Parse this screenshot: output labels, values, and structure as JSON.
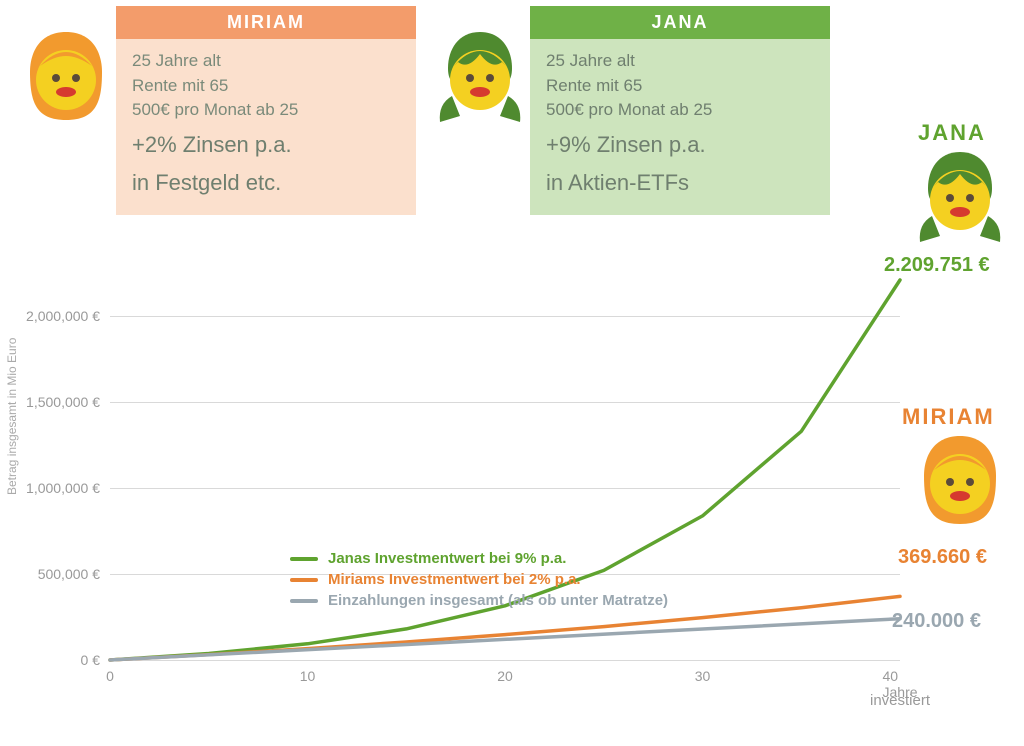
{
  "colors": {
    "miriam_accent": "#e88333",
    "miriam_header": "#f39c6b",
    "miriam_body_bg": "#fbe0cd",
    "jana_accent": "#5fa32f",
    "jana_header": "#6fb147",
    "jana_body_bg": "#cde4bd",
    "grey": "#9aa7b0",
    "text_muted": "#8f9a8f",
    "grid": "#d9d9d9"
  },
  "typography": {
    "base_font": "Segoe UI, Arial, sans-serif",
    "card_header_size_pt": 14,
    "card_body_size_pt": 13,
    "card_rate_size_pt": 17,
    "legend_size_pt": 11,
    "callout_name_size_pt": 17,
    "callout_value_size_pt": 15,
    "axis_label_size_pt": 10
  },
  "miriam": {
    "name": "MIRIAM",
    "age_line": "25 Jahre alt",
    "retire_line": "Rente mit 65",
    "contrib_line": "500€  pro Monat ab 25",
    "rate_line": "+2% Zinsen p.a.",
    "vehicle_line": "in Festgeld etc.",
    "final_value_label": "369.660 €"
  },
  "jana": {
    "name": "JANA",
    "age_line": "25 Jahre alt",
    "retire_line": "Rente mit 65",
    "contrib_line": "500€  pro Monat ab 25",
    "rate_line": "+9% Zinsen p.a.",
    "vehicle_line": "in Aktien-ETFs",
    "final_value_label": "2.209.751 €"
  },
  "deposits": {
    "final_value_label": "240.000 €"
  },
  "chart": {
    "type": "line",
    "x_axis": {
      "min": 0,
      "max": 40,
      "ticks": [
        0,
        10,
        20,
        30,
        40
      ],
      "tick_labels": [
        "0",
        "10",
        "20",
        "30",
        "40 Jahre"
      ],
      "title": "investiert"
    },
    "y_axis": {
      "min": 0,
      "max": 2209751,
      "plot_max": 2209751,
      "ticks": [
        0,
        500000,
        1000000,
        1500000,
        2000000
      ],
      "tick_labels": [
        "0 €",
        "500,000 €",
        "1,000,000 €",
        "1,500,000 €",
        "2,000,000 €"
      ],
      "title": "Betrag insgesamt in Mio Euro"
    },
    "grid": true,
    "line_width": 3.5,
    "series": [
      {
        "id": "jana",
        "legend": "Janas Investmentwert bei 9% p.a.",
        "color": "#5fa32f",
        "x": [
          0,
          5,
          10,
          15,
          20,
          25,
          30,
          35,
          40
        ],
        "y": [
          0,
          37800,
          94100,
          181000,
          315000,
          521000,
          838000,
          1330000,
          2209751
        ]
      },
      {
        "id": "miriam",
        "legend": "Miriams Investmentwert bei 2% p.a.",
        "color": "#e88333",
        "x": [
          0,
          5,
          10,
          15,
          20,
          25,
          30,
          35,
          40
        ],
        "y": [
          0,
          31540,
          66400,
          104900,
          147500,
          194500,
          246500,
          304000,
          369660
        ]
      },
      {
        "id": "deposits",
        "legend": "Einzahlungen insgesamt (als ob unter Matratze)",
        "color": "#9aa7b0",
        "x": [
          0,
          40
        ],
        "y": [
          0,
          240000
        ]
      }
    ]
  },
  "avatars": {
    "miriam": {
      "hair_color": "#f29a2e",
      "face_color": "#f4d021",
      "hair_style": "bob"
    },
    "jana": {
      "hair_color": "#4f8a2f",
      "face_color": "#f4d021",
      "hair_style": "pigtails"
    }
  }
}
